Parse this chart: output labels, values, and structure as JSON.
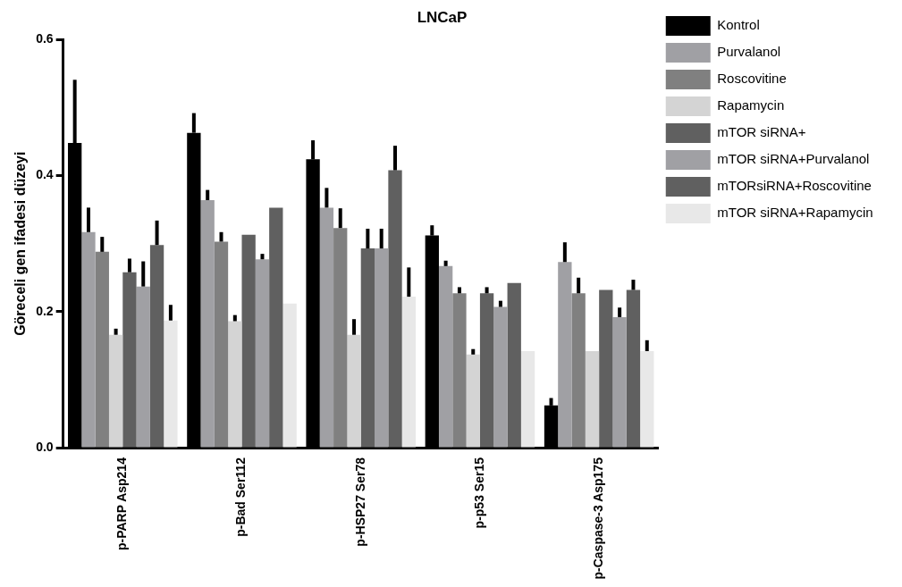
{
  "chart_data": {
    "type": "bar",
    "title": "LNCaP",
    "ylabel": "Göreceli gen ifadesi düzeyi",
    "categories": [
      "p-PARP Asp214",
      "p-Bad Ser112",
      "p-HSP27 Ser78",
      "p-p53 Ser15",
      "p-Caspase-3 Asp175"
    ],
    "ylim": [
      0,
      0.6
    ],
    "yticks": [
      {
        "value": 0,
        "label": "0.0"
      },
      {
        "value": 0.2,
        "label": "0.2"
      },
      {
        "value": 0.4,
        "label": "0.4"
      },
      {
        "value": 0.6,
        "label": "0.6"
      }
    ],
    "grid": false,
    "legend": "top right",
    "series": [
      {
        "name": "Kontrol",
        "color": "#000000",
        "values": [
          0.448,
          0.463,
          0.424,
          0.312,
          0.062
        ],
        "errors": [
          [
            0.448,
            0.541
          ],
          [
            0.463,
            0.492
          ],
          [
            0.424,
            0.452
          ],
          [
            0.312,
            0.327
          ],
          [
            0.062,
            0.073
          ]
        ]
      },
      {
        "name": "Purvalanol",
        "color": "#a0a0a4",
        "values": [
          0.317,
          0.364,
          0.353,
          0.267,
          0.273
        ],
        "errors": [
          [
            0.317,
            0.353
          ],
          [
            0.364,
            0.379
          ],
          [
            0.353,
            0.382
          ],
          [
            0.267,
            0.275
          ],
          [
            0.273,
            0.302
          ]
        ]
      },
      {
        "name": "Roscovitine",
        "color": "#808080",
        "values": [
          0.288,
          0.303,
          0.323,
          0.227,
          0.227
        ],
        "errors": [
          [
            0.288,
            0.31
          ],
          [
            0.303,
            0.317
          ],
          [
            0.323,
            0.352
          ],
          [
            0.227,
            0.236
          ],
          [
            0.227,
            0.25
          ]
        ]
      },
      {
        "name": "Rapamycin",
        "color": "#d4d4d4",
        "values": [
          0.166,
          0.186,
          0.166,
          0.137,
          0.142
        ],
        "errors": [
          [
            0.166,
            0.175
          ],
          [
            0.186,
            0.195
          ],
          [
            0.166,
            0.189
          ],
          [
            0.137,
            0.145
          ],
          null
        ]
      },
      {
        "name": "mTOR siRNA+",
        "color": "#606060",
        "values": [
          0.258,
          0.313,
          0.293,
          0.227,
          0.232
        ],
        "errors": [
          [
            0.258,
            0.278
          ],
          null,
          [
            0.293,
            0.322
          ],
          [
            0.227,
            0.236
          ],
          null
        ]
      },
      {
        "name": "mTOR siRNA+Purvalanol",
        "color": "#a0a0a4",
        "values": [
          0.237,
          0.277,
          0.293,
          0.207,
          0.192
        ],
        "errors": [
          [
            0.237,
            0.274
          ],
          [
            0.277,
            0.285
          ],
          [
            0.293,
            0.322
          ],
          [
            0.207,
            0.216
          ],
          [
            0.192,
            0.206
          ]
        ]
      },
      {
        "name": "mTORsiRNA+Roscovitine",
        "color": "#606060",
        "values": [
          0.298,
          0.353,
          0.408,
          0.242,
          0.232
        ],
        "errors": [
          [
            0.298,
            0.334
          ],
          null,
          [
            0.408,
            0.444
          ],
          null,
          [
            0.232,
            0.247
          ]
        ]
      },
      {
        "name": "mTOR siRNA+Rapamycin",
        "color": "#e8e8e8",
        "values": [
          0.187,
          0.212,
          0.222,
          0.142,
          0.142
        ],
        "errors": [
          [
            0.187,
            0.21
          ],
          null,
          [
            0.222,
            0.265
          ],
          null,
          [
            0.142,
            0.158
          ]
        ]
      }
    ]
  }
}
